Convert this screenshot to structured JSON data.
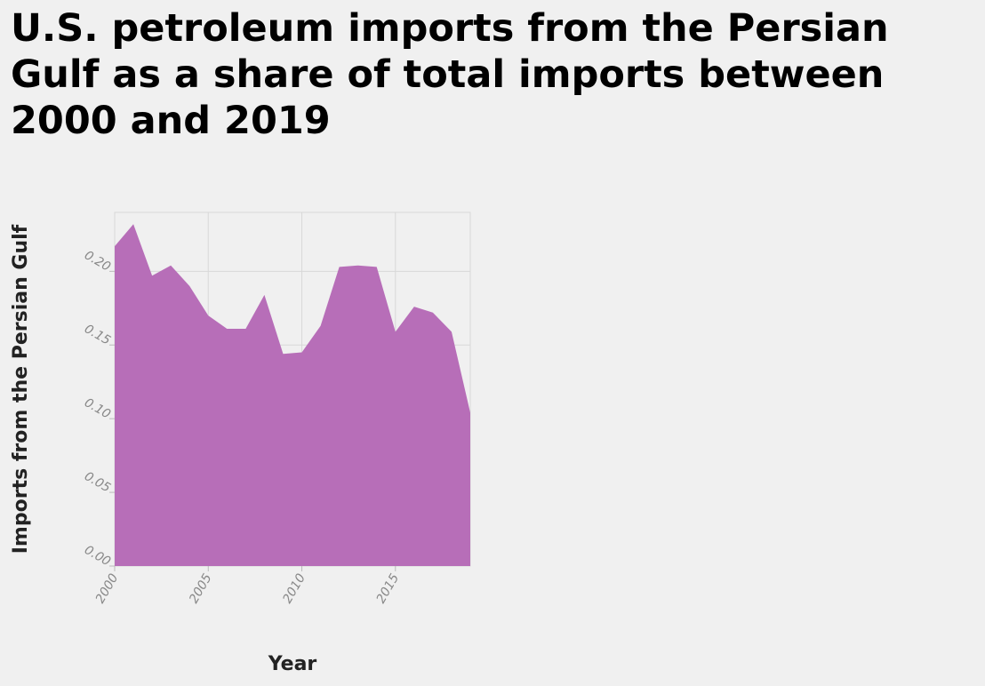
{
  "chart_data": {
    "type": "area",
    "title": "U.S. petroleum imports from the Persian Gulf as a share of total imports between 2000 and 2019",
    "xlabel": "Year",
    "ylabel": "Imports from the Persian Gulf",
    "x": [
      2000,
      2001,
      2002,
      2003,
      2004,
      2005,
      2006,
      2007,
      2008,
      2009,
      2010,
      2011,
      2012,
      2013,
      2014,
      2015,
      2016,
      2017,
      2018,
      2019
    ],
    "series": [
      {
        "values": [
          0.217,
          0.232,
          0.197,
          0.204,
          0.19,
          0.17,
          0.161,
          0.161,
          0.184,
          0.144,
          0.145,
          0.163,
          0.203,
          0.204,
          0.203,
          0.159,
          0.176,
          0.172,
          0.159,
          0.104
        ]
      }
    ],
    "xticks": [
      "2000",
      "2005",
      "2010",
      "2015"
    ],
    "yticks": [
      "0.00",
      "0.05",
      "0.10",
      "0.15",
      "0.20"
    ],
    "xlim": [
      2000,
      2019
    ],
    "ylim": [
      0,
      0.24
    ],
    "grid": true,
    "fill_color": "#b76eb8",
    "grid_color": "#d8d8d8"
  }
}
